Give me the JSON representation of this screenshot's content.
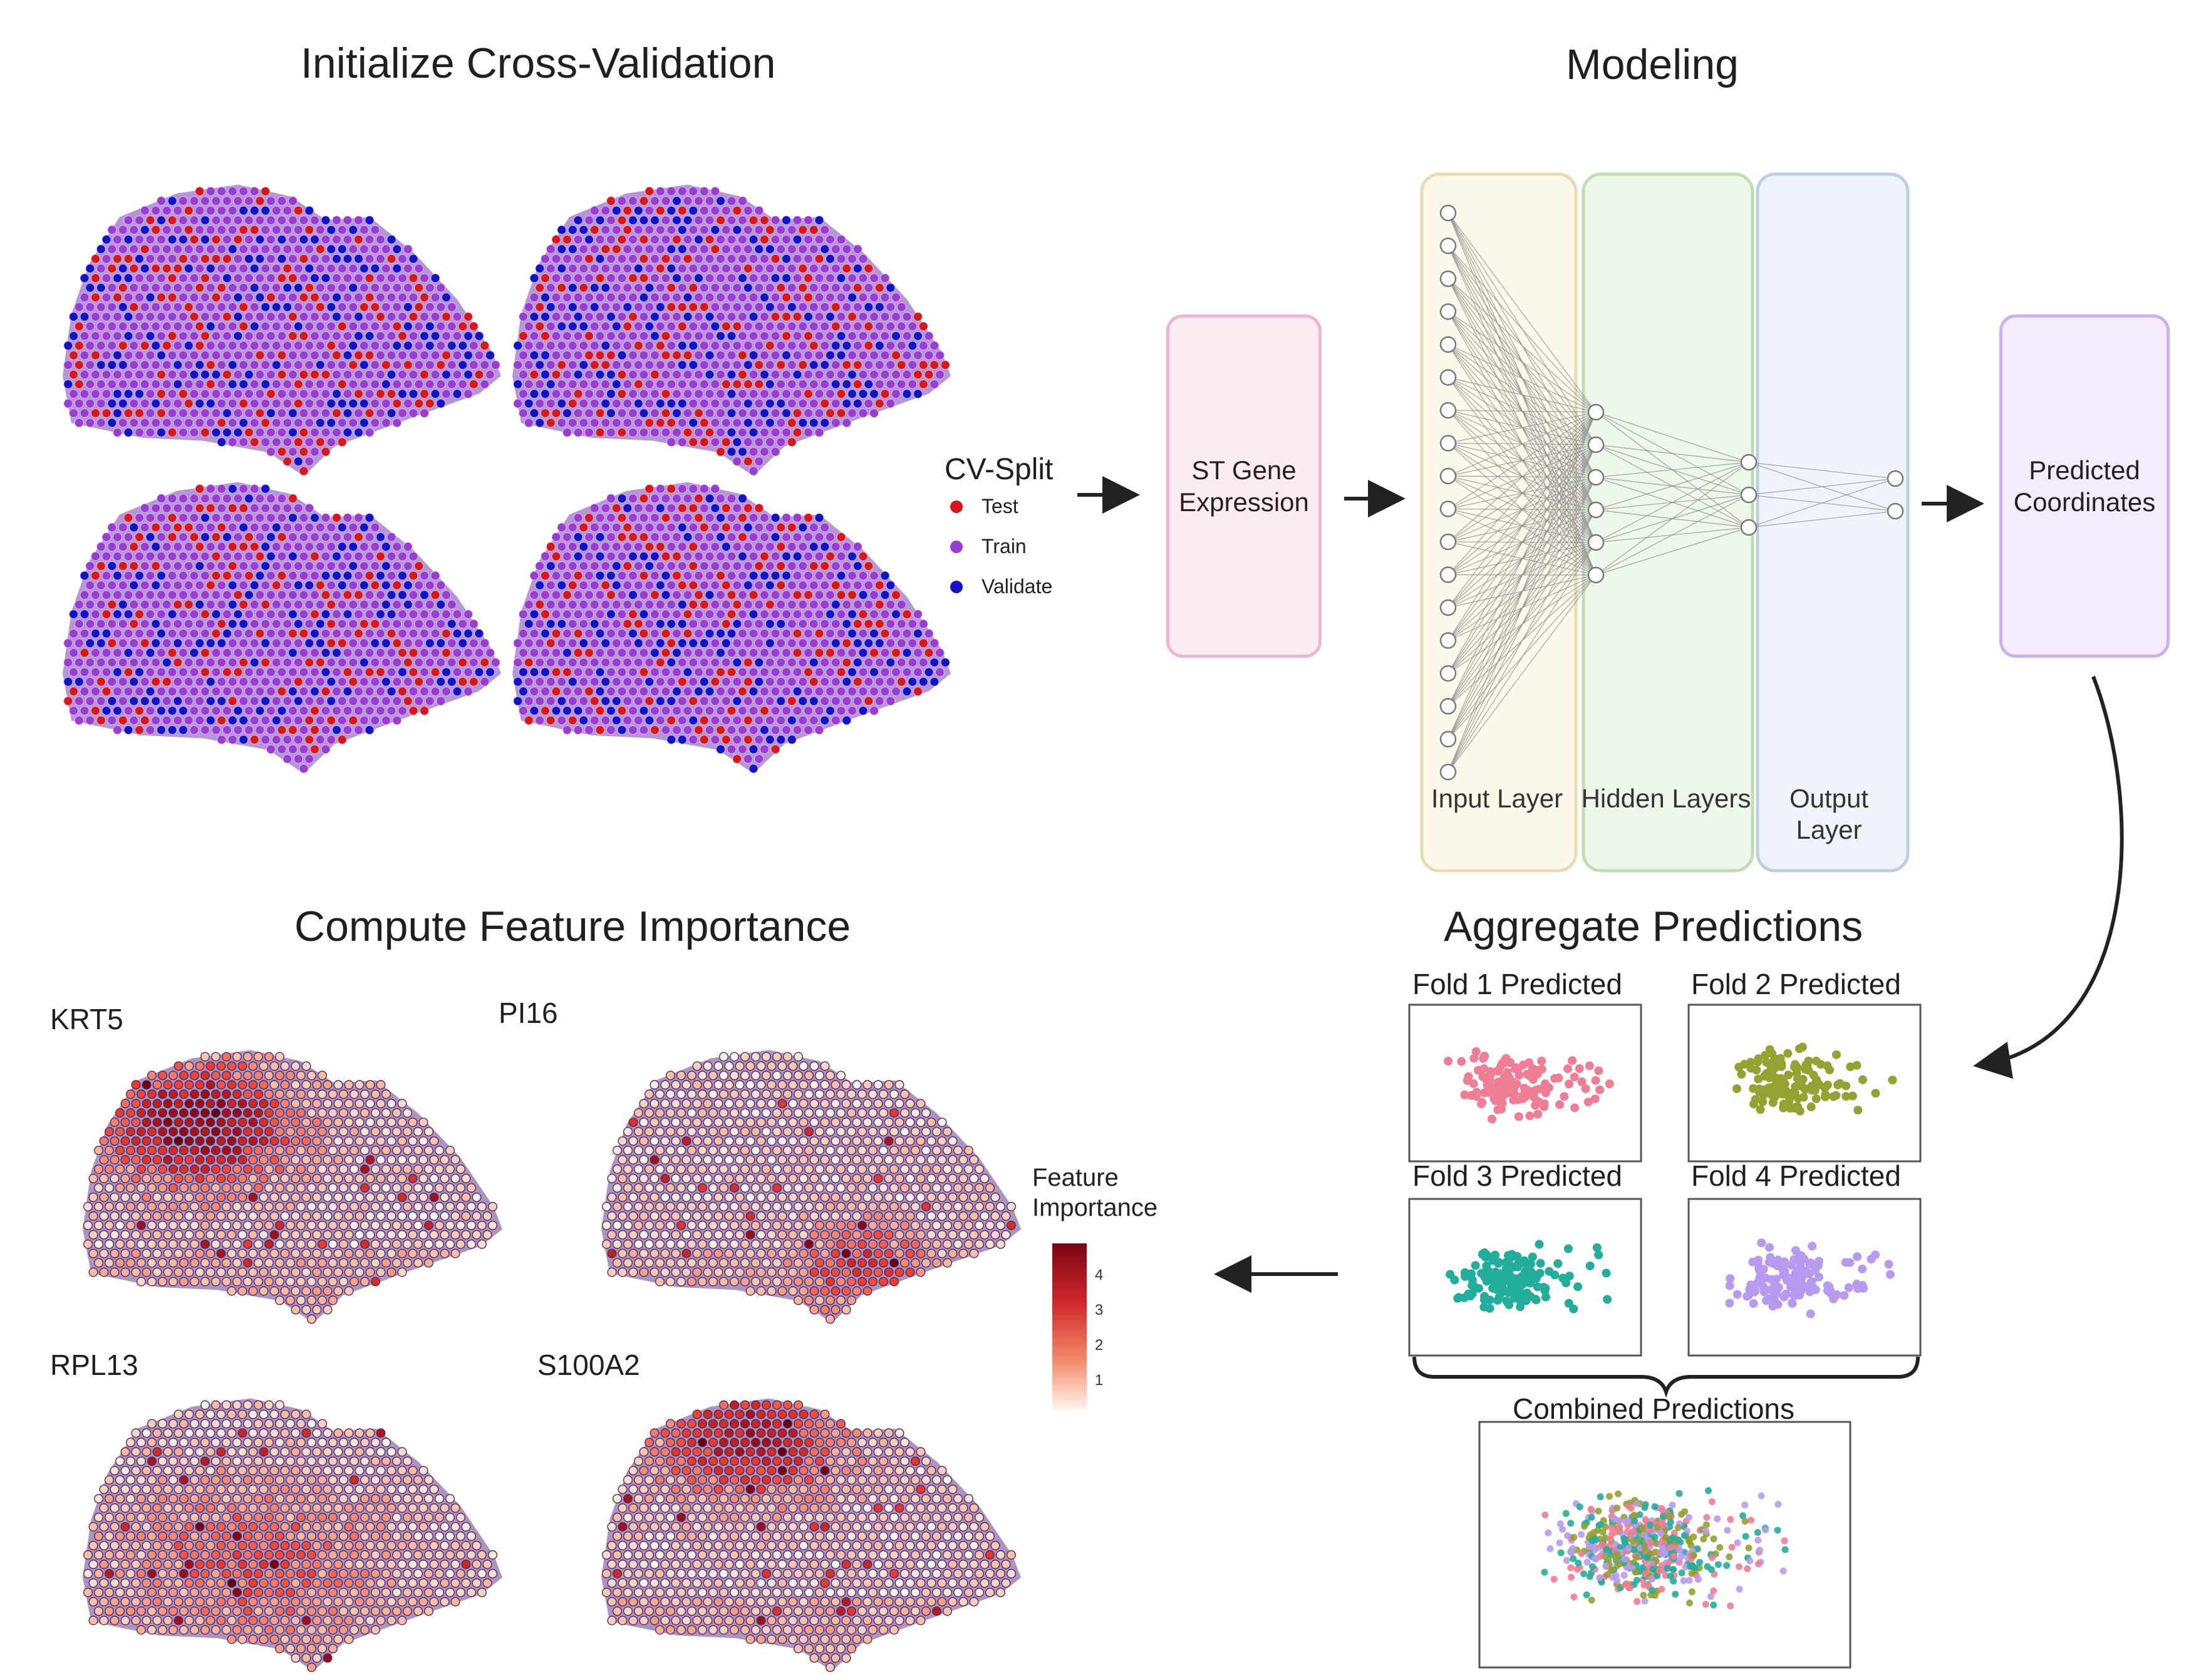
{
  "sections": {
    "cross_validation": "Initialize Cross-Validation",
    "modeling": "Modeling",
    "feature_importance": "Compute Feature Importance",
    "aggregate": "Aggregate Predictions"
  },
  "cv_legend": {
    "title": "CV-Split",
    "items": [
      {
        "label": "Test",
        "color": "#d9161c"
      },
      {
        "label": "Train",
        "color": "#9a3bd4"
      },
      {
        "label": "Validate",
        "color": "#1412c9"
      }
    ]
  },
  "pipeline": {
    "input_box": "ST Gene Expression",
    "output_box": "Predicted Coordinates",
    "layers": [
      "Input Layer",
      "Hidden Layers",
      "Output Layer"
    ],
    "colors": {
      "input_box": "#fdebf3",
      "input_border": "#efb4cf",
      "output_box": "#f4ecfd",
      "output_border": "#ccb1ee"
    }
  },
  "folds": [
    {
      "label": "Fold  1 Predicted",
      "color": "#ef7d93"
    },
    {
      "label": "Fold  2 Predicted",
      "color": "#95a130"
    },
    {
      "label": "Fold  3 Predicted",
      "color": "#22ad9c"
    },
    {
      "label": "Fold  4 Predicted",
      "color": "#b79af0"
    }
  ],
  "combined_label": "Combined Predictions",
  "genes": [
    "KRT5",
    "PI16",
    "RPL13",
    "S100A2"
  ],
  "feature_legend": {
    "title": "Feature Importance",
    "ticks": [
      "4",
      "3",
      "2",
      "1"
    ]
  }
}
